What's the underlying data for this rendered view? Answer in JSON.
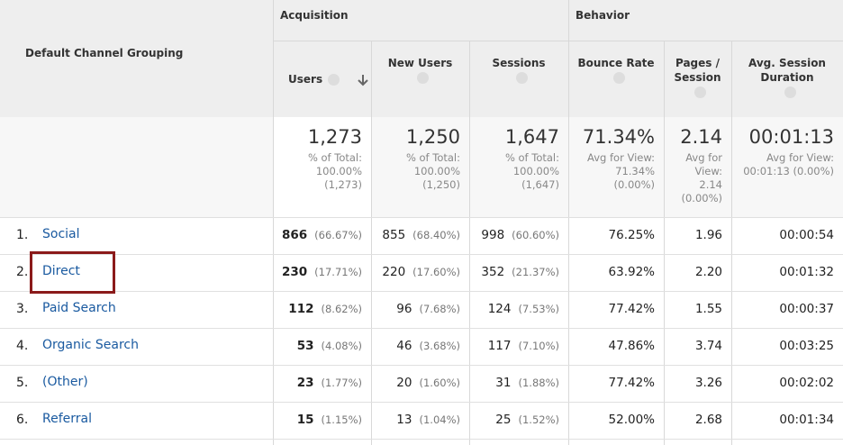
{
  "header": {
    "dimension": "Default Channel Grouping",
    "groups": [
      "Acquisition",
      "Behavior"
    ],
    "columns": [
      "Users",
      "New Users",
      "Sessions",
      "Bounce Rate",
      "Pages / Session",
      "Avg. Session Duration"
    ]
  },
  "totals": [
    {
      "value": "1,273",
      "note": [
        "% of Total:",
        "100.00%",
        "(1,273)"
      ]
    },
    {
      "value": "1,250",
      "note": [
        "% of Total:",
        "100.00%",
        "(1,250)"
      ]
    },
    {
      "value": "1,647",
      "note": [
        "% of Total:",
        "100.00%",
        "(1,647)"
      ]
    },
    {
      "value": "71.34%",
      "note": [
        "Avg for View:",
        "71.34%",
        "(0.00%)"
      ]
    },
    {
      "value": "2.14",
      "note": [
        "Avg for",
        "View:",
        "2.14",
        "(0.00%)"
      ]
    },
    {
      "value": "00:01:13",
      "note": [
        "Avg for View:",
        "00:01:13 (0.00%)"
      ]
    }
  ],
  "rows": [
    {
      "index": "1.",
      "channel": "Social",
      "cells": [
        [
          "866",
          "(66.67%)"
        ],
        [
          "855",
          "(68.40%)"
        ],
        [
          "998",
          "(60.60%)"
        ],
        [
          "76.25%"
        ],
        [
          "1.96"
        ],
        [
          "00:00:54"
        ]
      ]
    },
    {
      "index": "2.",
      "channel": "Direct",
      "cells": [
        [
          "230",
          "(17.71%)"
        ],
        [
          "220",
          "(17.60%)"
        ],
        [
          "352",
          "(21.37%)"
        ],
        [
          "63.92%"
        ],
        [
          "2.20"
        ],
        [
          "00:01:32"
        ]
      ]
    },
    {
      "index": "3.",
      "channel": "Paid Search",
      "cells": [
        [
          "112",
          "(8.62%)"
        ],
        [
          "96",
          "(7.68%)"
        ],
        [
          "124",
          "(7.53%)"
        ],
        [
          "77.42%"
        ],
        [
          "1.55"
        ],
        [
          "00:00:37"
        ]
      ]
    },
    {
      "index": "4.",
      "channel": "Organic Search",
      "cells": [
        [
          "53",
          "(4.08%)"
        ],
        [
          "46",
          "(3.68%)"
        ],
        [
          "117",
          "(7.10%)"
        ],
        [
          "47.86%"
        ],
        [
          "3.74"
        ],
        [
          "00:03:25"
        ]
      ]
    },
    {
      "index": "5.",
      "channel": "(Other)",
      "cells": [
        [
          "23",
          "(1.77%)"
        ],
        [
          "20",
          "(1.60%)"
        ],
        [
          "31",
          "(1.88%)"
        ],
        [
          "77.42%"
        ],
        [
          "3.26"
        ],
        [
          "00:02:02"
        ]
      ]
    },
    {
      "index": "6.",
      "channel": "Referral",
      "cells": [
        [
          "15",
          "(1.15%)"
        ],
        [
          "13",
          "(1.04%)"
        ],
        [
          "25",
          "(1.52%)"
        ],
        [
          "52.00%"
        ],
        [
          "2.68"
        ],
        [
          "00:01:34"
        ]
      ]
    }
  ]
}
